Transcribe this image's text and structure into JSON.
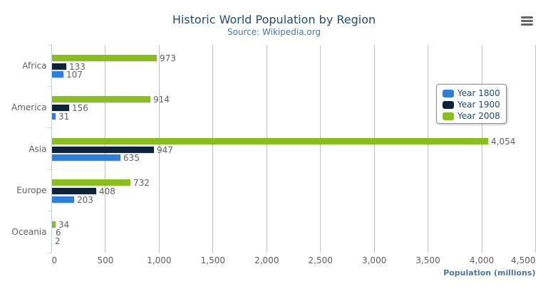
{
  "header": {
    "title": "Historic World Population by Region",
    "subtitle": "Source: Wikipedia.org"
  },
  "menu": {
    "icon": "hamburger-menu-icon"
  },
  "chart_data": {
    "type": "bar",
    "title": "Historic World Population by Region",
    "subtitle": "Source: Wikipedia.org",
    "categories": [
      "Africa",
      "America",
      "Asia",
      "Europe",
      "Oceania"
    ],
    "series": [
      {
        "name": "Year 1800",
        "color": "#2f7ed8",
        "values": [
          107,
          31,
          635,
          203,
          2
        ]
      },
      {
        "name": "Year 1900",
        "color": "#0d233a",
        "values": [
          133,
          156,
          947,
          408,
          6
        ]
      },
      {
        "name": "Year 2008",
        "color": "#8bbc21",
        "values": [
          973,
          914,
          4054,
          732,
          34
        ]
      }
    ],
    "bar_order_top_to_bottom": [
      "Year 2008",
      "Year 1900",
      "Year 1800"
    ],
    "data_labels": true,
    "xlabel": "Population (millions)",
    "xlim": [
      0,
      4500
    ],
    "xticks": [
      0,
      500,
      1000,
      1500,
      2000,
      2500,
      3000,
      3500,
      4000,
      4500
    ],
    "grid": true,
    "legend": {
      "layout": "vertical",
      "position": "right",
      "items": [
        "Year 1800",
        "Year 1900",
        "Year 2008"
      ]
    },
    "colors": {
      "grid_line": "#c0c0c0",
      "category_axis_line": "#c0d0e0",
      "tick_label": "#606060",
      "category_label": "#606060",
      "data_label": "#606060",
      "title": "#274b6d",
      "subtitle": "#4d759e",
      "axis_title": "#4d759e",
      "legend_text": "#274b6d",
      "menu_icon": "#666666"
    }
  }
}
